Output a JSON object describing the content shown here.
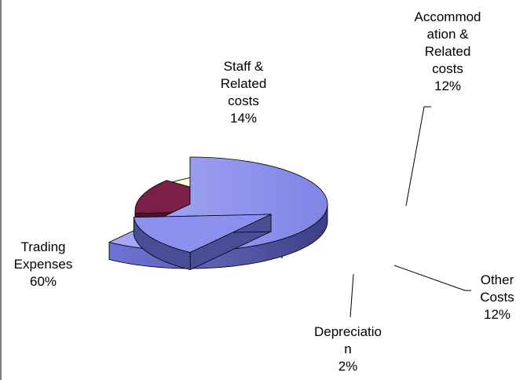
{
  "chart_data": {
    "type": "pie",
    "three_d": true,
    "exploded": true,
    "legend": "none",
    "title": "",
    "slices": [
      {
        "label_lines": [
          "Trading",
          "Expenses"
        ],
        "percent_label": "60%",
        "value": 60,
        "color": "#8b90ee",
        "side_color": "#5e62b5"
      },
      {
        "label_lines": [
          "Staff &",
          "Related",
          "costs"
        ],
        "percent_label": "14%",
        "value": 14,
        "color": "#8b90ee",
        "side_color": "#4a4e96"
      },
      {
        "label_lines": [
          "Accommod",
          "ation &",
          "Related",
          "costs"
        ],
        "percent_label": "12%",
        "value": 12,
        "color": "#7b1f49",
        "side_color": "#4d1230"
      },
      {
        "label_lines": [
          "Other",
          "Costs"
        ],
        "percent_label": "12%",
        "value": 12,
        "color": "#fbfbd6",
        "side_color": "#8b8a5f"
      },
      {
        "label_lines": [
          "Depreciatio",
          "n"
        ],
        "percent_label": "2%",
        "value": 2,
        "color": "#d6fbfb",
        "side_color": "#4f7a78"
      }
    ]
  }
}
